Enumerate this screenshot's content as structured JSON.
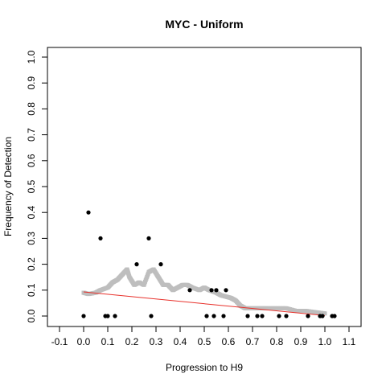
{
  "chart_data": {
    "type": "scatter",
    "title": "MYC - Uniform",
    "xlabel": "Progression to H9",
    "ylabel": "Frequency of Detection",
    "xlim": [
      -0.1,
      1.1
    ],
    "ylim": [
      0,
      1.0
    ],
    "x_ticks": [
      "-0.1",
      "0.0",
      "0.1",
      "0.2",
      "0.3",
      "0.4",
      "0.5",
      "0.6",
      "0.7",
      "0.8",
      "0.9",
      "1.0",
      "1.1"
    ],
    "y_ticks": [
      "0.0",
      "0.1",
      "0.2",
      "0.3",
      "0.4",
      "0.5",
      "0.6",
      "0.7",
      "0.8",
      "0.9",
      "1.0"
    ],
    "grid": false,
    "colors": {
      "points": "#000000",
      "smooth": "#bebebe",
      "fit": "#e8302a"
    },
    "observed": {
      "x": [
        0.0,
        0.02,
        0.07,
        0.09,
        0.1,
        0.13,
        0.22,
        0.27,
        0.28,
        0.32,
        0.44,
        0.51,
        0.53,
        0.54,
        0.55,
        0.58,
        0.59,
        0.68,
        0.72,
        0.74,
        0.81,
        0.84,
        0.93,
        0.98,
        0.99,
        1.03,
        1.04
      ],
      "y": [
        0.0,
        0.4,
        0.3,
        0.0,
        0.0,
        0.0,
        0.2,
        0.3,
        0.0,
        0.2,
        0.1,
        0.0,
        0.1,
        0.0,
        0.1,
        0.0,
        0.1,
        0.0,
        0.0,
        0.0,
        0.0,
        0.0,
        0.0,
        0.0,
        0.0,
        0.0,
        0.0
      ]
    },
    "smoothed": {
      "x": [
        0.0,
        0.02,
        0.05,
        0.07,
        0.1,
        0.12,
        0.14,
        0.16,
        0.18,
        0.19,
        0.21,
        0.23,
        0.25,
        0.27,
        0.29,
        0.31,
        0.33,
        0.35,
        0.37,
        0.39,
        0.41,
        0.43,
        0.45,
        0.48,
        0.5,
        0.52,
        0.55,
        0.57,
        0.59,
        0.61,
        0.63,
        0.65,
        0.67,
        0.7,
        0.73,
        0.76,
        0.8,
        0.84,
        0.88,
        0.92,
        0.96,
        1.0
      ],
      "y": [
        0.09,
        0.085,
        0.09,
        0.1,
        0.11,
        0.13,
        0.14,
        0.16,
        0.18,
        0.15,
        0.12,
        0.13,
        0.12,
        0.17,
        0.18,
        0.15,
        0.12,
        0.12,
        0.1,
        0.11,
        0.12,
        0.12,
        0.11,
        0.1,
        0.11,
        0.1,
        0.09,
        0.08,
        0.075,
        0.07,
        0.06,
        0.04,
        0.03,
        0.03,
        0.03,
        0.03,
        0.03,
        0.03,
        0.02,
        0.02,
        0.015,
        0.01
      ]
    },
    "fit": {
      "x": [
        0.0,
        1.0
      ],
      "y": [
        0.093,
        0.002
      ]
    }
  }
}
